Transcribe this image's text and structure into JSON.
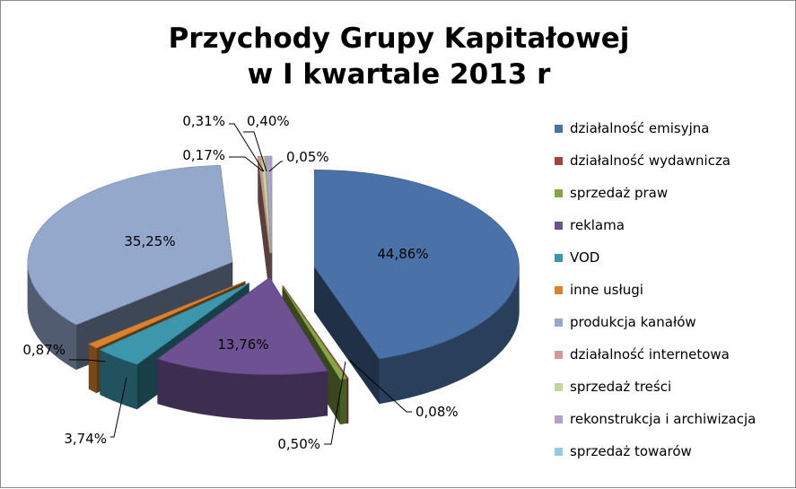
{
  "chart_data": {
    "type": "pie",
    "title_lines": [
      "Przychody Grupy Kapitałowej",
      "w I kwartale 2013 r"
    ],
    "legend_position": "right",
    "slices": [
      {
        "label": "działalność emisyjna",
        "value": 44.86,
        "display": "44,86%",
        "color": "#4a72a8"
      },
      {
        "label": "działalność wydawnicza",
        "value": 0.08,
        "display": "0,08%",
        "color": "#a9403d"
      },
      {
        "label": "sprzedaż praw",
        "value": 0.5,
        "display": "0,50%",
        "color": "#86a844"
      },
      {
        "label": "reklama",
        "value": 13.76,
        "display": "13,76%",
        "color": "#6e5193"
      },
      {
        "label": "VOD",
        "value": 3.74,
        "display": "3,74%",
        "color": "#3c97ad"
      },
      {
        "label": "inne usługi",
        "value": 0.87,
        "display": "0,87%",
        "color": "#d9822f"
      },
      {
        "label": "produkcja kanałów",
        "value": 35.25,
        "display": "35,25%",
        "color": "#94a8cc"
      },
      {
        "label": "działalność internetowa",
        "value": 0.17,
        "display": "0,17%",
        "color": "#d99694"
      },
      {
        "label": "sprzedaż treści",
        "value": 0.31,
        "display": "0,31%",
        "color": "#c3d69b"
      },
      {
        "label": "rekonstrukcja i archiwizacja",
        "value": 0.4,
        "display": "0,40%",
        "color": "#b3a2c7"
      },
      {
        "label": "sprzedaż towarów",
        "value": 0.05,
        "display": "0,05%",
        "color": "#93cddd"
      }
    ]
  }
}
